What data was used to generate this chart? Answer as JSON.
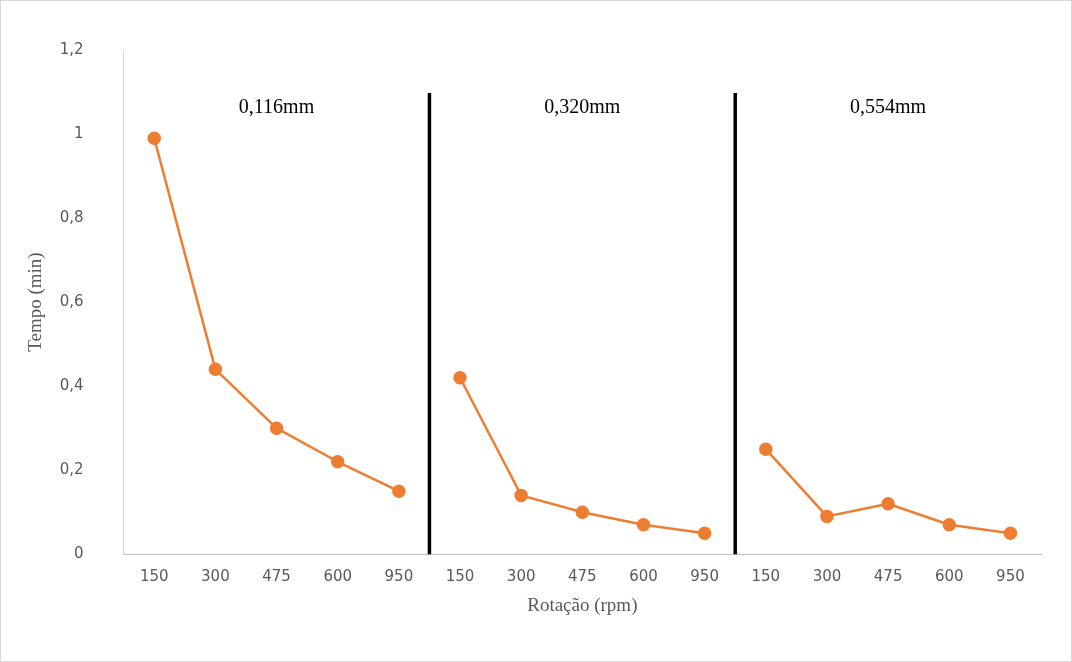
{
  "chart_data": {
    "type": "line",
    "categories": [
      "150",
      "300",
      "475",
      "600",
      "950",
      "150",
      "300",
      "475",
      "600",
      "950",
      "150",
      "300",
      "475",
      "600",
      "950"
    ],
    "series": [
      {
        "color": "#ed7d31",
        "values": [
          0.99,
          0.44,
          0.3,
          0.22,
          0.15,
          null,
          null,
          null,
          null,
          null,
          null,
          null,
          null,
          null,
          null
        ]
      },
      {
        "color": "#ed7d31",
        "values": [
          null,
          null,
          null,
          null,
          null,
          0.42,
          0.14,
          0.1,
          0.07,
          0.05,
          null,
          null,
          null,
          null,
          null
        ]
      },
      {
        "color": "#ed7d31",
        "values": [
          null,
          null,
          null,
          null,
          null,
          null,
          null,
          null,
          null,
          null,
          0.25,
          0.09,
          0.12,
          0.07,
          0.05
        ]
      }
    ],
    "xlabel": "Rotação (rpm)",
    "ylabel": "Tempo (min)",
    "ylim": [
      0,
      1.2
    ],
    "yticks": [
      0,
      {
        "value": 0.2,
        "label": "0,2"
      },
      {
        "value": 0.4,
        "label": "0,4"
      },
      {
        "value": 0.6,
        "label": "0,6"
      },
      {
        "value": 0.8,
        "label": "0,8"
      },
      1,
      {
        "value": 1.2,
        "label": "1,2"
      }
    ],
    "annotations": [
      "0,116mm",
      "0,320mm",
      "0,554mm"
    ],
    "grid": false,
    "legend": false,
    "marker": "circle",
    "line_style": "solid"
  }
}
